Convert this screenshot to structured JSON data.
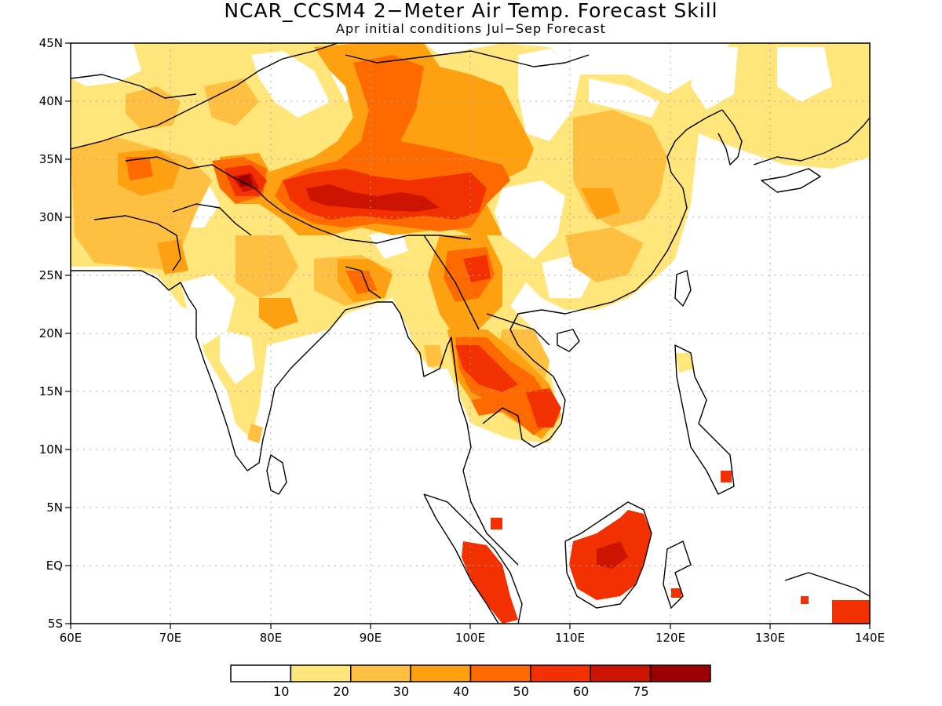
{
  "title": "NCAR_CCSM4 2−Meter Air Temp. Forecast Skill",
  "subtitle": "Apr initial conditions  Jul−Sep Forecast",
  "map": {
    "lon_labels": [
      "60E",
      "70E",
      "80E",
      "90E",
      "100E",
      "110E",
      "120E",
      "130E",
      "140E"
    ],
    "lat_labels": [
      "45N",
      "40N",
      "35N",
      "30N",
      "25N",
      "20N",
      "15N",
      "10N",
      "5N",
      "EQ",
      "5S"
    ]
  },
  "colorbar": {
    "labels": [
      "10",
      "20",
      "30",
      "40",
      "50",
      "60",
      "75"
    ],
    "colors": [
      "#ffffff",
      "#ffe57a",
      "#ffbf40",
      "#ffa010",
      "#ff6a00",
      "#f23000",
      "#cc1400",
      "#9c0000"
    ]
  }
}
